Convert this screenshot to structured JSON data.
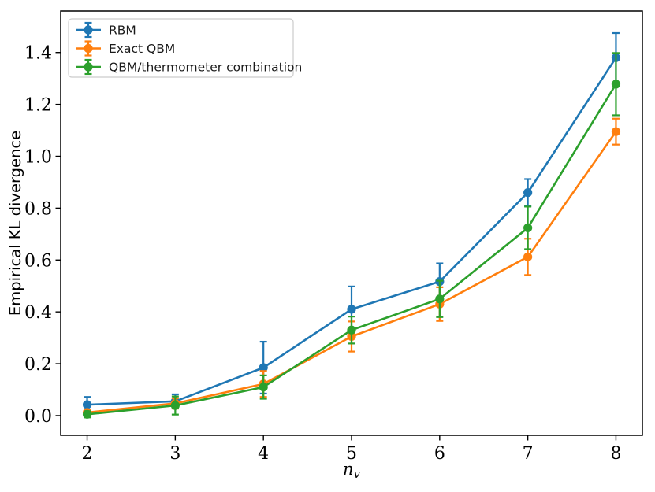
{
  "chart_data": {
    "type": "line",
    "title": "",
    "ylabel": "Empirical KL divergence",
    "xlabel_base": "n",
    "xlabel_sub": "v",
    "x": [
      2,
      3,
      4,
      5,
      6,
      7,
      8
    ],
    "xtick_labels": [
      "2",
      "3",
      "4",
      "5",
      "6",
      "7",
      "8"
    ],
    "ytick_values": [
      0.0,
      0.2,
      0.4,
      0.6,
      0.8,
      1.0,
      1.2,
      1.4
    ],
    "ytick_labels": [
      "0.0",
      "0.2",
      "0.4",
      "0.6",
      "0.8",
      "1.0",
      "1.2",
      "1.4"
    ],
    "xlim": [
      1.7,
      8.3
    ],
    "ylim": [
      -0.076,
      1.56
    ],
    "grid": false,
    "legend_position": "upper-left",
    "frame_color": "#000000",
    "legend_edge_color": "#cccccc",
    "text_color": "#000000",
    "series": [
      {
        "name": "RBM",
        "color": "#1f77b4",
        "values": [
          0.042,
          0.055,
          0.185,
          0.41,
          0.517,
          0.86,
          1.38
        ],
        "errors": [
          0.03,
          0.027,
          0.1,
          0.088,
          0.07,
          0.052,
          0.095
        ]
      },
      {
        "name": "Exact QBM",
        "color": "#ff7f0e",
        "values": [
          0.012,
          0.047,
          0.122,
          0.305,
          0.43,
          0.612,
          1.095
        ],
        "errors": [
          0.01,
          0.02,
          0.05,
          0.058,
          0.065,
          0.07,
          0.05
        ]
      },
      {
        "name": "QBM/thermometer combination",
        "color": "#2ca02c",
        "values": [
          0.005,
          0.039,
          0.11,
          0.33,
          0.45,
          0.724,
          1.278
        ],
        "errors": [
          0.012,
          0.035,
          0.045,
          0.052,
          0.07,
          0.082,
          0.12
        ]
      }
    ]
  }
}
